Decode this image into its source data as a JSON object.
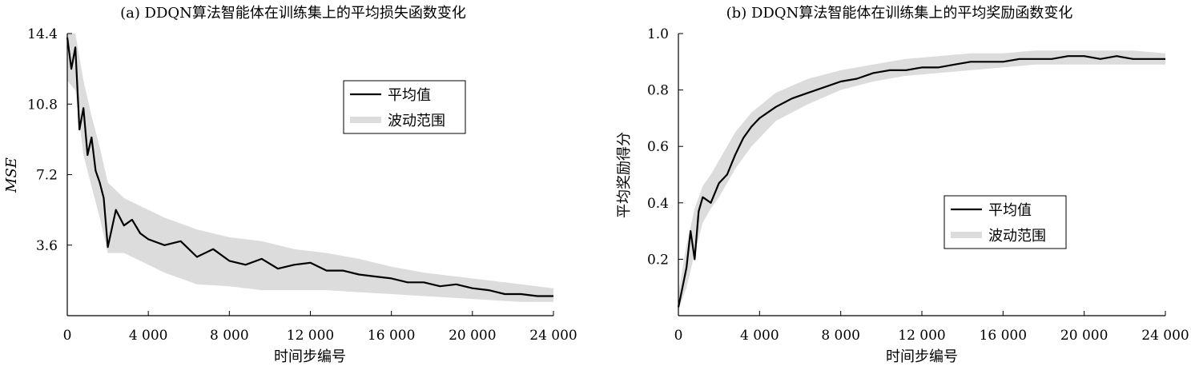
{
  "chart_data": [
    {
      "type": "line",
      "title": "(a) DDQN算法智能体在训练集上的平均损失函数变化",
      "xlabel": "时间步编号",
      "ylabel": "MSE",
      "xlim": [
        0,
        24000
      ],
      "ylim": [
        0,
        14.4
      ],
      "xticks": [
        0,
        4000,
        8000,
        12000,
        16000,
        20000,
        24000
      ],
      "xtick_labels": [
        "0",
        "4 000",
        "8 000",
        "12 000",
        "16 000",
        "20 000",
        "24 000"
      ],
      "yticks": [
        3.6,
        7.2,
        10.8,
        14.4
      ],
      "ytick_labels": [
        "3.6",
        "7.2",
        "10.8",
        "14.4"
      ],
      "legend_position": "upper-center",
      "grid": false,
      "series": [
        {
          "name": "平均值",
          "kind": "line",
          "color": "#000000",
          "x": [
            0,
            200,
            400,
            600,
            800,
            1000,
            1200,
            1400,
            1600,
            1800,
            2000,
            2400,
            2800,
            3200,
            3600,
            4000,
            4800,
            5600,
            6400,
            7200,
            8000,
            8800,
            9600,
            10400,
            11200,
            12000,
            12800,
            13600,
            14400,
            15200,
            16000,
            16800,
            17600,
            18400,
            19200,
            20000,
            20800,
            21600,
            22400,
            23200,
            24000
          ],
          "y": [
            14.2,
            12.6,
            13.7,
            9.5,
            10.6,
            8.2,
            9.1,
            7.4,
            6.8,
            6.0,
            3.5,
            5.4,
            4.6,
            4.9,
            4.2,
            3.9,
            3.6,
            3.8,
            3.0,
            3.4,
            2.8,
            2.6,
            2.9,
            2.4,
            2.6,
            2.7,
            2.3,
            2.3,
            2.1,
            2.0,
            1.9,
            1.7,
            1.7,
            1.5,
            1.6,
            1.4,
            1.3,
            1.1,
            1.1,
            1.0,
            1.0
          ]
        },
        {
          "name": "波动范围",
          "kind": "band",
          "color": "#dcdcdc",
          "x": [
            0,
            400,
            800,
            1200,
            1600,
            2000,
            2800,
            3600,
            4800,
            6400,
            8000,
            9600,
            11200,
            12800,
            14400,
            16000,
            17600,
            19200,
            20800,
            22400,
            24000
          ],
          "lower": [
            12.0,
            11.5,
            8.2,
            6.6,
            5.0,
            3.2,
            3.2,
            2.8,
            2.2,
            1.6,
            1.5,
            1.3,
            1.3,
            1.3,
            1.2,
            1.1,
            1.0,
            0.9,
            0.8,
            0.7,
            0.7
          ],
          "upper": [
            14.4,
            14.4,
            12.0,
            10.2,
            8.6,
            6.8,
            6.0,
            5.6,
            5.0,
            4.4,
            4.0,
            3.8,
            3.4,
            3.2,
            2.9,
            2.5,
            2.2,
            2.0,
            1.8,
            1.6,
            1.4
          ]
        }
      ]
    },
    {
      "type": "line",
      "title": "(b) DDQN算法智能体在训练集上的平均奖励函数变化",
      "xlabel": "时间步编号",
      "ylabel": "平均奖励得分",
      "xlim": [
        0,
        24000
      ],
      "ylim": [
        0,
        1.0
      ],
      "xticks": [
        0,
        4000,
        8000,
        12000,
        16000,
        20000,
        24000
      ],
      "xtick_labels": [
        "0",
        "4 000",
        "8 000",
        "12 000",
        "16 000",
        "20 000",
        "24 000"
      ],
      "yticks": [
        0.2,
        0.4,
        0.6,
        0.8,
        1.0
      ],
      "ytick_labels": [
        "0.2",
        "0.4",
        "0.6",
        "0.8",
        "1.0"
      ],
      "legend_position": "lower-center",
      "grid": false,
      "series": [
        {
          "name": "平均值",
          "kind": "line",
          "color": "#000000",
          "x": [
            0,
            200,
            400,
            600,
            800,
            1000,
            1200,
            1600,
            2000,
            2400,
            2800,
            3200,
            3600,
            4000,
            4800,
            5600,
            6400,
            7200,
            8000,
            8800,
            9600,
            10400,
            11200,
            12000,
            12800,
            13600,
            14400,
            15200,
            16000,
            16800,
            17600,
            18400,
            19200,
            20000,
            20800,
            21600,
            22400,
            23200,
            24000
          ],
          "y": [
            0.03,
            0.1,
            0.17,
            0.3,
            0.2,
            0.37,
            0.42,
            0.4,
            0.47,
            0.5,
            0.57,
            0.63,
            0.67,
            0.7,
            0.74,
            0.77,
            0.79,
            0.81,
            0.83,
            0.84,
            0.86,
            0.87,
            0.87,
            0.88,
            0.88,
            0.89,
            0.9,
            0.9,
            0.9,
            0.91,
            0.91,
            0.91,
            0.92,
            0.92,
            0.91,
            0.92,
            0.91,
            0.91,
            0.91
          ]
        },
        {
          "name": "波动范围",
          "kind": "band",
          "color": "#dcdcdc",
          "x": [
            0,
            400,
            800,
            1200,
            1600,
            2000,
            2800,
            3600,
            4800,
            6400,
            8000,
            9600,
            11200,
            12800,
            14400,
            16000,
            17600,
            19200,
            20800,
            22400,
            24000
          ],
          "lower": [
            0.02,
            0.1,
            0.22,
            0.33,
            0.38,
            0.42,
            0.52,
            0.6,
            0.69,
            0.75,
            0.8,
            0.83,
            0.85,
            0.86,
            0.87,
            0.88,
            0.89,
            0.89,
            0.89,
            0.89,
            0.89
          ],
          "upper": [
            0.08,
            0.25,
            0.38,
            0.46,
            0.5,
            0.55,
            0.65,
            0.72,
            0.79,
            0.84,
            0.87,
            0.89,
            0.91,
            0.92,
            0.93,
            0.93,
            0.94,
            0.94,
            0.94,
            0.94,
            0.93
          ]
        }
      ]
    }
  ]
}
